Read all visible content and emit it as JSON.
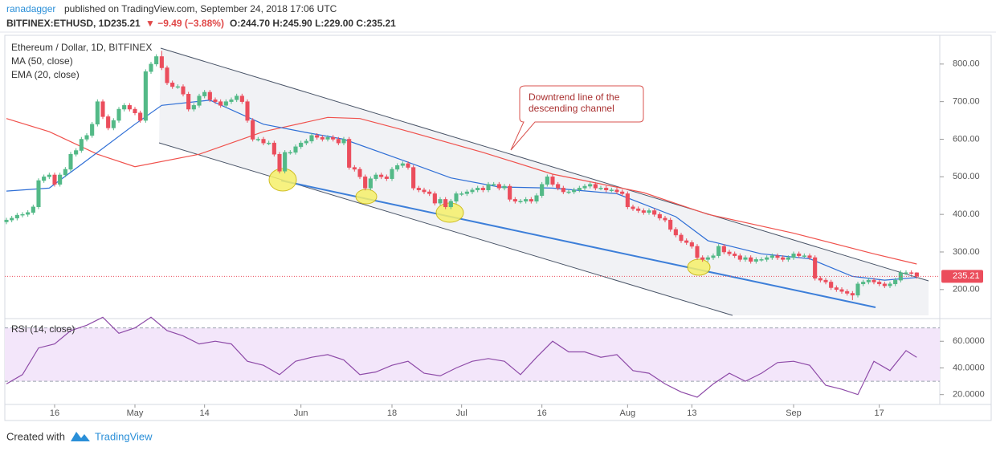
{
  "header": {
    "author": "ranadagger",
    "published": "published on TradingView.com, September 24, 2018 17:06 UTC",
    "symbol": "BITFINEX:ETHUSD, 1D",
    "change": "▼ −9.49 (−3.88%)",
    "ohlc": "O:244.70 H:245.90 L:229.00 C:235.21"
  },
  "footer": {
    "created": "Created with",
    "brand": "TradingView"
  },
  "chart_data": {
    "type": "candlestick",
    "title": "Ethereum / Dollar, 1D, BITFINEX",
    "up_color": "#53b987",
    "down_color": "#eb4d5c",
    "xlim": [
      -0.3,
      174
    ],
    "ylim": [
      127,
      853
    ],
    "xticks": [
      {
        "value": 9,
        "label": "16"
      },
      {
        "value": 24,
        "label": "May"
      },
      {
        "value": 37,
        "label": "14"
      },
      {
        "value": 55,
        "label": "Jun"
      },
      {
        "value": 72,
        "label": "18"
      },
      {
        "value": 85,
        "label": "Jul"
      },
      {
        "value": 100,
        "label": "16"
      },
      {
        "value": 116,
        "label": "Aug"
      },
      {
        "value": 128,
        "label": "13"
      },
      {
        "value": 147,
        "label": "Sep"
      },
      {
        "value": 163,
        "label": "17"
      }
    ],
    "yticks": [
      {
        "value": 800,
        "label": "800.00"
      },
      {
        "value": 700,
        "label": "700.00"
      },
      {
        "value": 600,
        "label": "600.00"
      },
      {
        "value": 500,
        "label": "500.00"
      },
      {
        "value": 400,
        "label": "400.00"
      },
      {
        "value": 300,
        "label": "300.00"
      },
      {
        "value": 200,
        "label": "200.00"
      }
    ],
    "annotation": [
      "Downtrend line of the",
      "descending channel"
    ],
    "ohlc": [
      [
        380,
        391,
        374,
        385
      ],
      [
        385,
        396,
        379,
        390
      ],
      [
        390,
        404,
        384,
        398
      ],
      [
        398,
        406,
        392,
        400
      ],
      [
        400,
        411,
        394,
        405
      ],
      [
        405,
        426,
        399,
        420
      ],
      [
        420,
        496,
        414,
        490
      ],
      [
        490,
        506,
        484,
        500
      ],
      [
        500,
        511,
        494,
        505
      ],
      [
        505,
        511,
        474,
        480
      ],
      [
        480,
        511,
        474,
        505
      ],
      [
        505,
        526,
        499,
        520
      ],
      [
        520,
        566,
        514,
        560
      ],
      [
        560,
        576,
        554,
        570
      ],
      [
        570,
        606,
        564,
        600
      ],
      [
        600,
        616,
        594,
        610
      ],
      [
        610,
        646,
        604,
        640
      ],
      [
        640,
        706,
        634,
        700
      ],
      [
        700,
        706,
        654,
        660
      ],
      [
        660,
        666,
        624,
        630
      ],
      [
        630,
        656,
        624,
        650
      ],
      [
        650,
        686,
        644,
        680
      ],
      [
        680,
        696,
        674,
        690
      ],
      [
        690,
        696,
        674,
        680
      ],
      [
        680,
        686,
        664,
        670
      ],
      [
        670,
        676,
        644,
        650
      ],
      [
        650,
        786,
        644,
        780
      ],
      [
        780,
        806,
        774,
        800
      ],
      [
        800,
        826,
        794,
        820
      ],
      [
        820,
        835,
        784,
        790
      ],
      [
        790,
        796,
        744,
        750
      ],
      [
        750,
        756,
        734,
        740
      ],
      [
        740,
        746,
        734,
        740
      ],
      [
        740,
        746,
        714,
        720
      ],
      [
        720,
        726,
        674,
        680
      ],
      [
        680,
        696,
        674,
        690
      ],
      [
        690,
        721,
        684,
        715
      ],
      [
        715,
        731,
        709,
        725
      ],
      [
        725,
        731,
        699,
        705
      ],
      [
        705,
        711,
        694,
        700
      ],
      [
        700,
        706,
        684,
        690
      ],
      [
        690,
        706,
        684,
        700
      ],
      [
        700,
        711,
        694,
        705
      ],
      [
        705,
        721,
        699,
        715
      ],
      [
        715,
        721,
        694,
        700
      ],
      [
        700,
        706,
        644,
        650
      ],
      [
        650,
        656,
        594,
        600
      ],
      [
        600,
        606,
        594,
        600
      ],
      [
        600,
        606,
        584,
        590
      ],
      [
        590,
        596,
        584,
        590
      ],
      [
        590,
        596,
        554,
        560
      ],
      [
        560,
        566,
        509,
        515
      ],
      [
        515,
        571,
        509,
        565
      ],
      [
        565,
        571,
        559,
        565
      ],
      [
        565,
        586,
        559,
        580
      ],
      [
        580,
        596,
        574,
        590
      ],
      [
        590,
        601,
        584,
        595
      ],
      [
        595,
        616,
        589,
        610
      ],
      [
        610,
        616,
        599,
        605
      ],
      [
        605,
        611,
        594,
        600
      ],
      [
        600,
        611,
        594,
        605
      ],
      [
        605,
        611,
        594,
        600
      ],
      [
        600,
        606,
        584,
        590
      ],
      [
        590,
        606,
        584,
        600
      ],
      [
        600,
        606,
        519,
        525
      ],
      [
        525,
        531,
        514,
        520
      ],
      [
        520,
        526,
        494,
        500
      ],
      [
        500,
        506,
        464,
        470
      ],
      [
        470,
        501,
        464,
        495
      ],
      [
        495,
        511,
        489,
        505
      ],
      [
        505,
        511,
        494,
        500
      ],
      [
        500,
        506,
        489,
        495
      ],
      [
        495,
        526,
        489,
        520
      ],
      [
        520,
        536,
        514,
        530
      ],
      [
        530,
        541,
        524,
        535
      ],
      [
        535,
        541,
        519,
        525
      ],
      [
        525,
        531,
        464,
        470
      ],
      [
        470,
        476,
        459,
        465
      ],
      [
        465,
        471,
        454,
        460
      ],
      [
        460,
        466,
        449,
        455
      ],
      [
        455,
        461,
        424,
        430
      ],
      [
        430,
        446,
        424,
        440
      ],
      [
        440,
        446,
        414,
        420
      ],
      [
        420,
        441,
        414,
        435
      ],
      [
        435,
        461,
        429,
        455
      ],
      [
        455,
        461,
        449,
        455
      ],
      [
        455,
        466,
        449,
        460
      ],
      [
        460,
        471,
        454,
        465
      ],
      [
        465,
        476,
        459,
        470
      ],
      [
        470,
        476,
        459,
        465
      ],
      [
        465,
        486,
        459,
        480
      ],
      [
        480,
        486,
        474,
        480
      ],
      [
        480,
        486,
        464,
        470
      ],
      [
        470,
        481,
        464,
        475
      ],
      [
        475,
        481,
        434,
        440
      ],
      [
        440,
        446,
        429,
        435
      ],
      [
        435,
        441,
        429,
        435
      ],
      [
        435,
        446,
        429,
        440
      ],
      [
        440,
        446,
        429,
        435
      ],
      [
        435,
        456,
        429,
        450
      ],
      [
        450,
        486,
        444,
        480
      ],
      [
        480,
        506,
        474,
        500
      ],
      [
        500,
        506,
        474,
        480
      ],
      [
        480,
        486,
        464,
        470
      ],
      [
        470,
        476,
        454,
        460
      ],
      [
        460,
        466,
        454,
        460
      ],
      [
        460,
        471,
        454,
        465
      ],
      [
        465,
        476,
        459,
        470
      ],
      [
        470,
        481,
        464,
        475
      ],
      [
        475,
        486,
        469,
        480
      ],
      [
        480,
        486,
        464,
        470
      ],
      [
        470,
        476,
        464,
        470
      ],
      [
        470,
        476,
        459,
        465
      ],
      [
        465,
        471,
        459,
        465
      ],
      [
        465,
        471,
        454,
        460
      ],
      [
        460,
        466,
        449,
        455
      ],
      [
        455,
        461,
        414,
        420
      ],
      [
        420,
        426,
        409,
        415
      ],
      [
        415,
        421,
        404,
        410
      ],
      [
        410,
        416,
        399,
        405
      ],
      [
        405,
        416,
        399,
        410
      ],
      [
        410,
        416,
        394,
        400
      ],
      [
        400,
        406,
        384,
        390
      ],
      [
        390,
        396,
        379,
        385
      ],
      [
        385,
        391,
        354,
        360
      ],
      [
        360,
        366,
        339,
        345
      ],
      [
        345,
        351,
        324,
        330
      ],
      [
        330,
        336,
        319,
        325
      ],
      [
        325,
        331,
        309,
        315
      ],
      [
        315,
        321,
        279,
        285
      ],
      [
        285,
        291,
        274,
        280
      ],
      [
        280,
        291,
        274,
        285
      ],
      [
        285,
        296,
        279,
        290
      ],
      [
        290,
        321,
        284,
        315
      ],
      [
        315,
        321,
        294,
        300
      ],
      [
        300,
        306,
        289,
        295
      ],
      [
        295,
        301,
        284,
        290
      ],
      [
        290,
        296,
        274,
        280
      ],
      [
        280,
        291,
        274,
        285
      ],
      [
        285,
        291,
        269,
        275
      ],
      [
        275,
        286,
        269,
        280
      ],
      [
        280,
        286,
        274,
        280
      ],
      [
        280,
        291,
        274,
        285
      ],
      [
        285,
        296,
        279,
        290
      ],
      [
        290,
        296,
        279,
        285
      ],
      [
        285,
        291,
        274,
        280
      ],
      [
        280,
        291,
        274,
        285
      ],
      [
        285,
        301,
        279,
        295
      ],
      [
        295,
        301,
        284,
        290
      ],
      [
        290,
        296,
        284,
        290
      ],
      [
        290,
        296,
        279,
        285
      ],
      [
        285,
        291,
        224,
        230
      ],
      [
        230,
        236,
        219,
        225
      ],
      [
        225,
        231,
        214,
        220
      ],
      [
        220,
        226,
        199,
        205
      ],
      [
        205,
        211,
        194,
        200
      ],
      [
        200,
        206,
        189,
        195
      ],
      [
        195,
        201,
        184,
        190
      ],
      [
        190,
        196,
        172,
        185
      ],
      [
        185,
        221,
        179,
        215
      ],
      [
        215,
        226,
        209,
        220
      ],
      [
        220,
        231,
        214,
        225
      ],
      [
        225,
        231,
        214,
        220
      ],
      [
        220,
        226,
        209,
        215
      ],
      [
        215,
        221,
        204,
        210
      ],
      [
        210,
        221,
        204,
        215
      ],
      [
        215,
        231,
        209,
        225
      ],
      [
        225,
        251,
        219,
        245
      ],
      [
        245,
        251,
        239,
        245
      ],
      [
        245,
        251,
        239,
        244.7
      ],
      [
        244.7,
        245.9,
        229,
        235.21
      ]
    ],
    "series": [
      {
        "name": "MA (50, close)",
        "color": "#f0514c",
        "x": [
          0,
          8,
          17,
          24,
          36,
          48,
          60,
          66,
          74,
          89,
          102,
          119,
          131,
          147,
          162,
          170
        ],
        "values": [
          655,
          620,
          560,
          527,
          560,
          620,
          658,
          655,
          625,
          565,
          507,
          458,
          400,
          350,
          295,
          268
        ]
      },
      {
        "name": "EMA (20, close)",
        "color": "#2f6fd6",
        "x": [
          0,
          8,
          14,
          24,
          29,
          38,
          48,
          56,
          63,
          74,
          83,
          92,
          102,
          114,
          125,
          131,
          141,
          150,
          158,
          164,
          170
        ],
        "values": [
          462,
          470,
          533,
          640,
          690,
          704,
          640,
          618,
          600,
          544,
          497,
          473,
          470,
          455,
          394,
          330,
          295,
          282,
          235,
          225,
          232
        ]
      }
    ],
    "rsi": {
      "name": "RSI (14, close)",
      "color": "#8e4ba8",
      "ylim": [
        12,
        77
      ],
      "bands": [
        30,
        70
      ],
      "yticks": [
        {
          "value": 60,
          "label": "60.0000"
        },
        {
          "value": 40,
          "label": "40.0000"
        },
        {
          "value": 20,
          "label": "20.0000"
        }
      ],
      "x": [
        0,
        3,
        6,
        9,
        12,
        15,
        18,
        21,
        24,
        27,
        30,
        33,
        36,
        39,
        42,
        45,
        48,
        51,
        54,
        57,
        60,
        63,
        66,
        69,
        72,
        75,
        78,
        81,
        84,
        87,
        90,
        93,
        96,
        99,
        102,
        105,
        108,
        111,
        114,
        117,
        120,
        123,
        126,
        129,
        132,
        135,
        138,
        141,
        144,
        147,
        150,
        153,
        156,
        159,
        162,
        165,
        168,
        170
      ],
      "values": [
        28,
        35,
        55,
        58,
        68,
        72,
        78,
        66,
        70,
        78,
        68,
        64,
        58,
        60,
        58,
        45,
        42,
        35,
        45,
        48,
        50,
        46,
        35,
        37,
        42,
        45,
        36,
        34,
        40,
        45,
        47,
        45,
        35,
        48,
        60,
        52,
        52,
        48,
        50,
        38,
        36,
        28,
        22,
        18,
        28,
        36,
        30,
        36,
        44,
        45,
        42,
        27,
        24,
        20,
        45,
        38,
        53,
        48
      ]
    }
  }
}
